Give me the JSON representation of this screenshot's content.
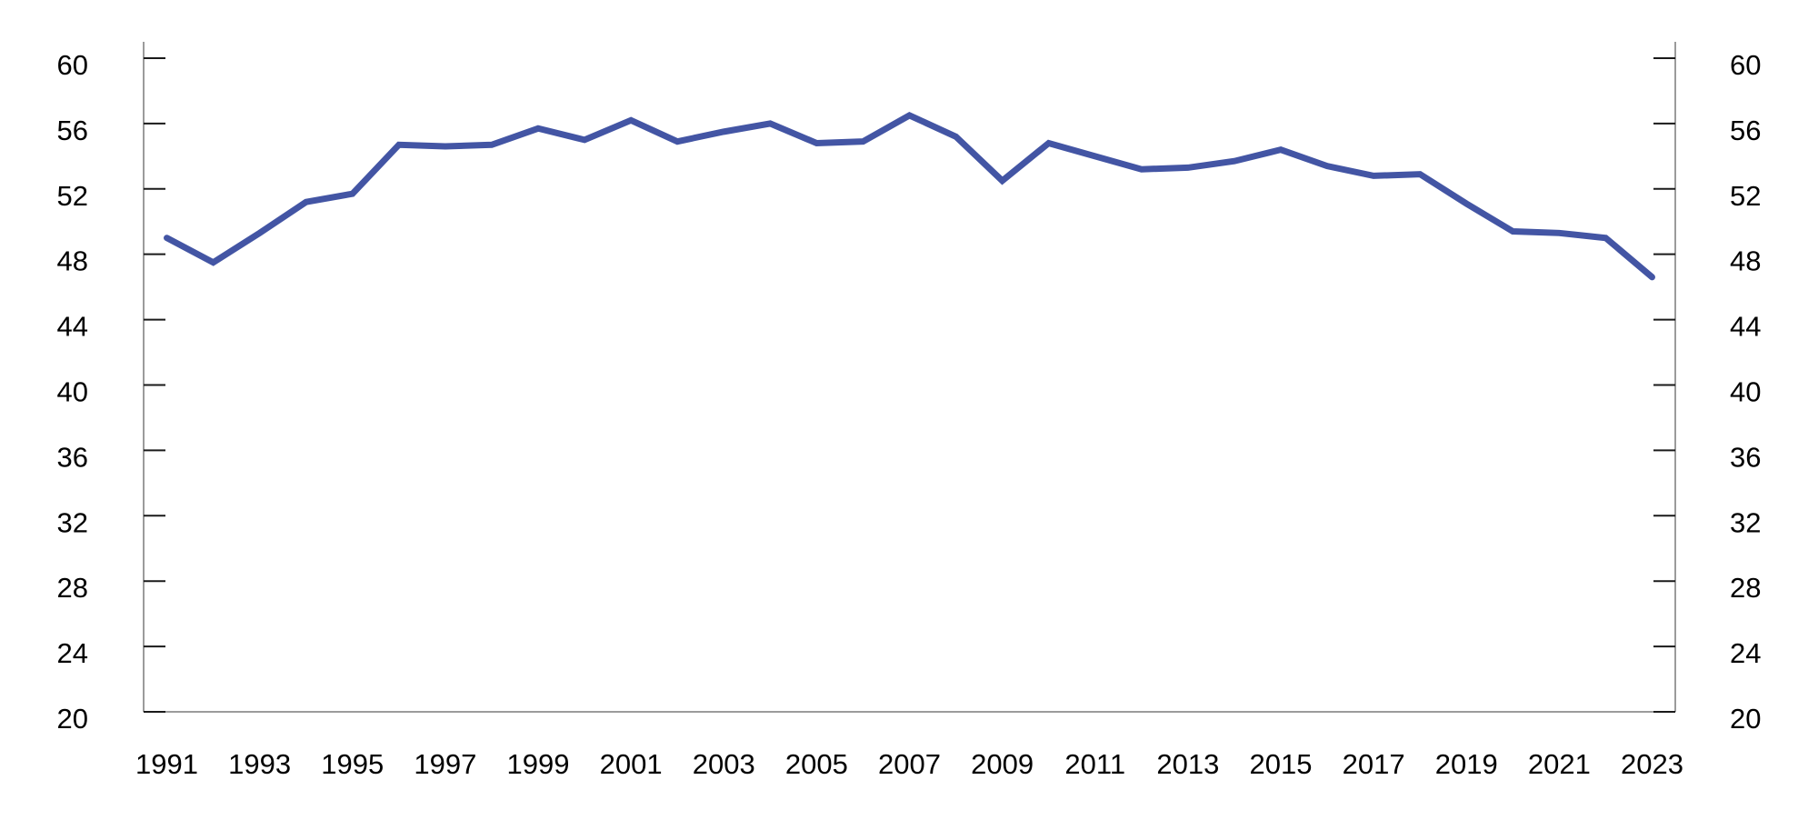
{
  "chart_data": {
    "type": "line",
    "title": "",
    "xlabel": "",
    "ylabel": "",
    "x": [
      1991,
      1992,
      1993,
      1994,
      1995,
      1996,
      1997,
      1998,
      1999,
      2000,
      2001,
      2002,
      2003,
      2004,
      2005,
      2006,
      2007,
      2008,
      2009,
      2010,
      2011,
      2012,
      2013,
      2014,
      2015,
      2016,
      2017,
      2018,
      2019,
      2020,
      2021,
      2022,
      2023
    ],
    "series": [
      {
        "name": "main-line",
        "values": [
          49.0,
          47.5,
          49.3,
          51.2,
          51.7,
          54.7,
          54.6,
          54.7,
          55.7,
          55.0,
          56.2,
          54.9,
          55.5,
          56.0,
          54.8,
          54.9,
          56.5,
          55.2,
          52.5,
          54.8,
          54.0,
          53.2,
          53.3,
          53.7,
          54.4,
          53.4,
          52.8,
          52.9,
          51.1,
          49.4,
          49.3,
          49.0,
          46.6
        ]
      }
    ],
    "x_tick_labels": [
      "1991",
      "1993",
      "1995",
      "1997",
      "1999",
      "2001",
      "2003",
      "2005",
      "2007",
      "2009",
      "2011",
      "2013",
      "2015",
      "2017",
      "2019",
      "2021",
      "2023"
    ],
    "yticks": [
      20,
      24,
      28,
      32,
      36,
      40,
      44,
      48,
      52,
      56,
      60
    ],
    "ylim": [
      20,
      61
    ],
    "y_axis_sides": [
      "left",
      "right"
    ],
    "grid": false,
    "legend": "none",
    "colors": {
      "line": "#4355A4",
      "axis": "#7a7a7a",
      "tick": "#1a1a1a",
      "text": "#000000",
      "background": "#ffffff"
    }
  }
}
